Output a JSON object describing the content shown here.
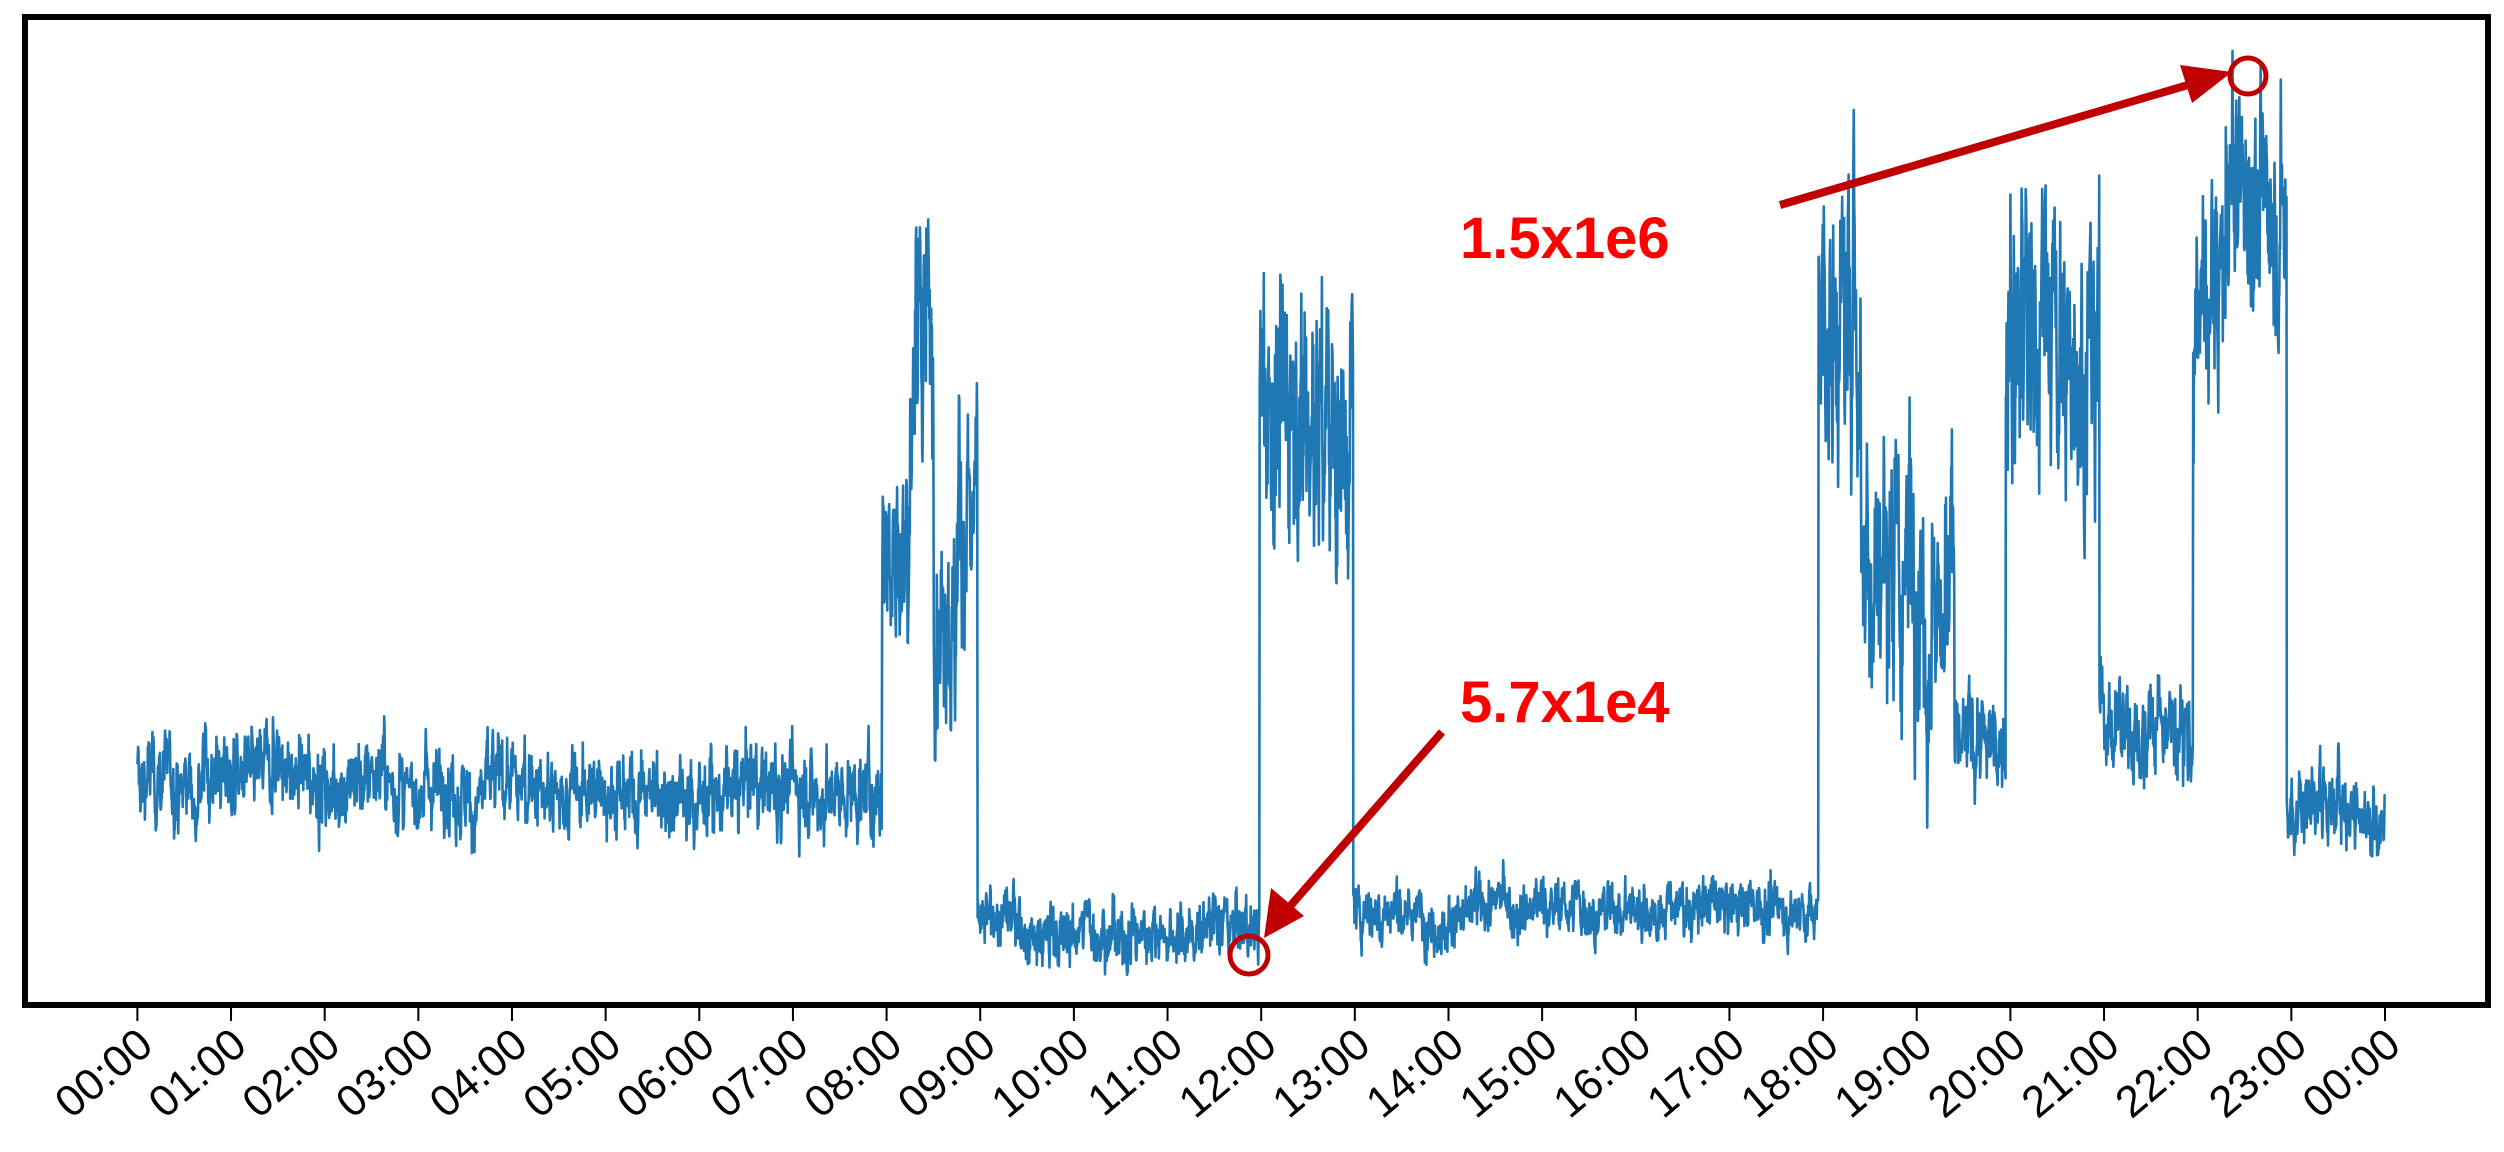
{
  "chart_data": {
    "type": "line",
    "title": "",
    "xlabel": "",
    "ylabel": "",
    "x_ticks": [
      "00:00",
      "01:00",
      "02:00",
      "03:00",
      "04:00",
      "05:00",
      "06:00",
      "07:00",
      "08:00",
      "09:00",
      "10:00",
      "11:00",
      "12:00",
      "13:00",
      "14:00",
      "15:00",
      "16:00",
      "17:00",
      "18:00",
      "19:00",
      "20:00",
      "21:00",
      "22:00",
      "23:00",
      "00:00"
    ],
    "xlim_hours": [
      -1.2,
      25.1
    ],
    "ylim": [
      0,
      1650000
    ],
    "y_axis_labels_visible": false,
    "grid": false,
    "legend": "none",
    "series": [
      {
        "color": "#1f77b4",
        "segments": [
          {
            "start_hour": 0.0,
            "end_hour": 7.95,
            "mean": 370000,
            "noise": 60000
          },
          {
            "start_hour": 7.95,
            "end_hour": 8.25,
            "mean": 820000,
            "noise": 140000
          },
          {
            "start_hour": 8.25,
            "end_hour": 8.5,
            "mean": 1150000,
            "noise": 200000
          },
          {
            "start_hour": 8.5,
            "end_hour": 8.75,
            "mean": 700000,
            "noise": 150000
          },
          {
            "start_hour": 8.75,
            "end_hour": 8.97,
            "mean": 880000,
            "noise": 150000
          },
          {
            "start_hour": 8.97,
            "end_hour": 11.98,
            "mean": 130000,
            "noise": 45000
          },
          {
            "start_hour": 11.98,
            "end_hour": 12.98,
            "mean": 1000000,
            "noise": 200000
          },
          {
            "start_hour": 12.98,
            "end_hour": 17.95,
            "mean": 160000,
            "noise": 40000
          },
          {
            "start_hour": 17.95,
            "end_hour": 18.4,
            "mean": 1150000,
            "noise": 220000
          },
          {
            "start_hour": 18.4,
            "end_hour": 19.4,
            "mean": 800000,
            "noise": 200000
          },
          {
            "start_hour": 19.4,
            "end_hour": 19.95,
            "mean": 440000,
            "noise": 70000
          },
          {
            "start_hour": 19.95,
            "end_hour": 20.95,
            "mean": 1100000,
            "noise": 200000
          },
          {
            "start_hour": 20.95,
            "end_hour": 21.95,
            "mean": 470000,
            "noise": 70000
          },
          {
            "start_hour": 21.95,
            "end_hour": 22.3,
            "mean": 1150000,
            "noise": 180000
          },
          {
            "start_hour": 22.3,
            "end_hour": 22.95,
            "mean": 1350000,
            "noise": 150000
          },
          {
            "start_hour": 22.95,
            "end_hour": 24.0,
            "mean": 350000,
            "noise": 60000
          }
        ]
      }
    ],
    "annotations": [
      {
        "text": "1.5x1e6",
        "color": "#ff0000",
        "target_hour": 22.65,
        "target_value": 1500000
      },
      {
        "text": "5.7x1e4",
        "color": "#ff0000",
        "target_hour": 11.9,
        "target_value": 57000
      }
    ],
    "annotation_marker_color": "#c00000"
  }
}
